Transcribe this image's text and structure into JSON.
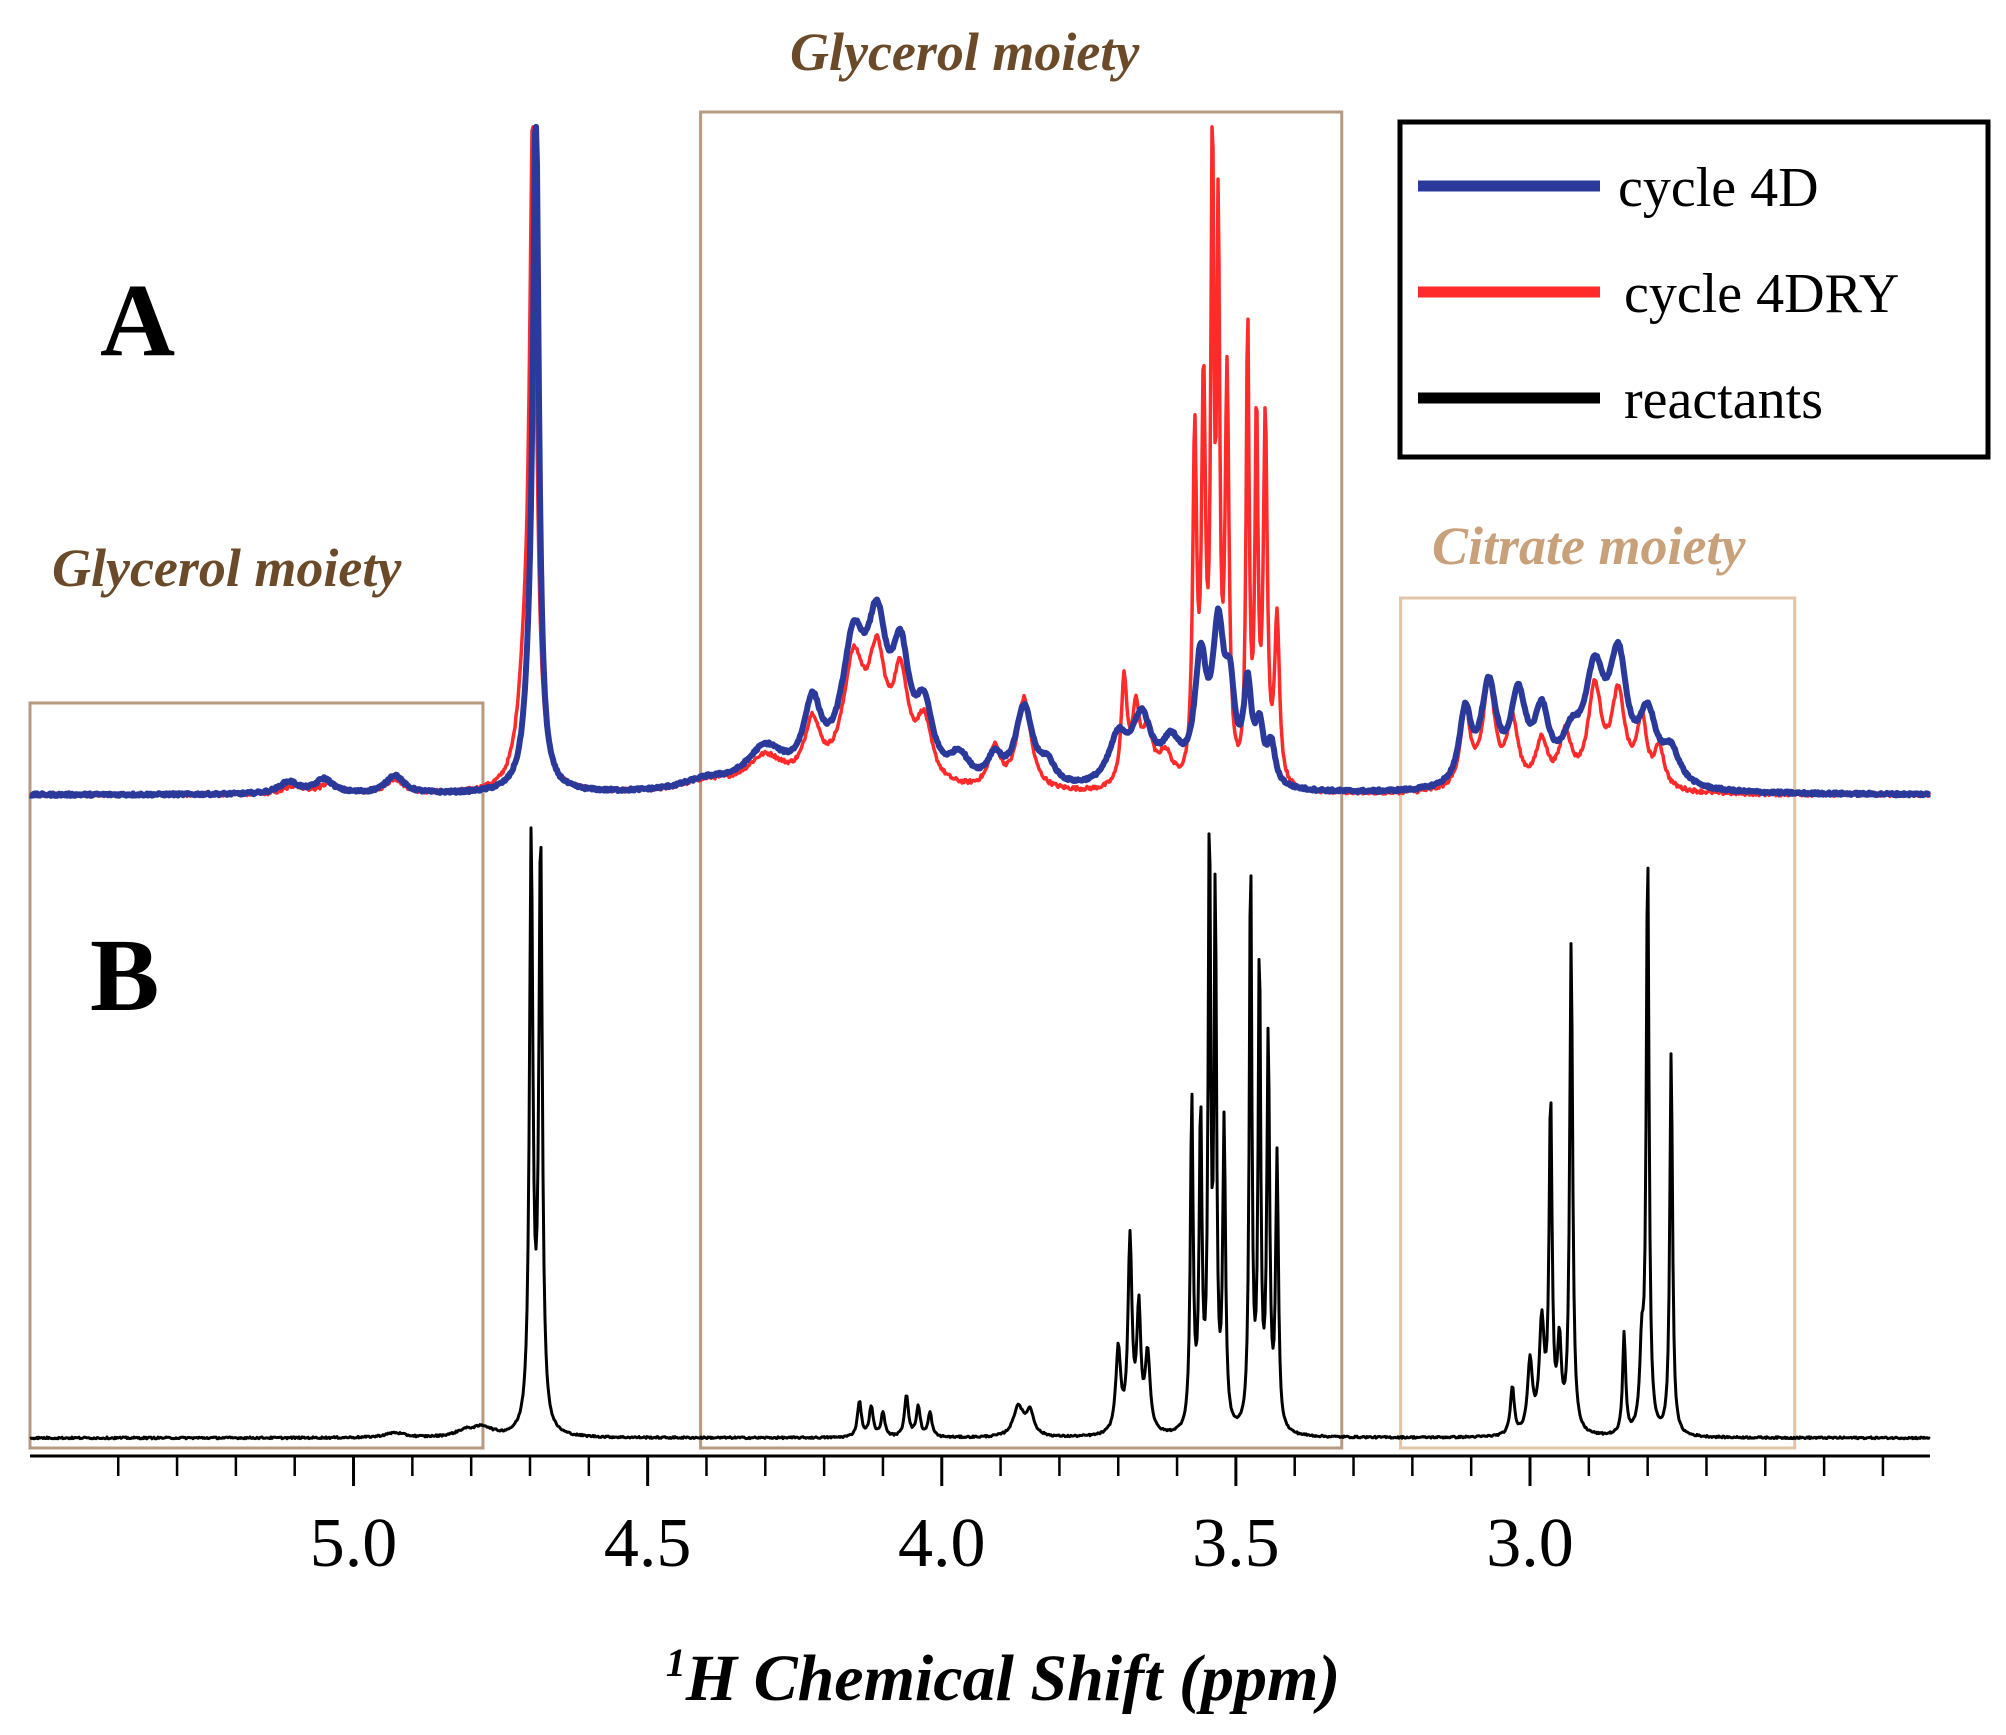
{
  "chart_data": {
    "type": "line",
    "title": "",
    "xlabel": {
      "superscript": "1",
      "text": "H Chemical Shift (ppm)"
    },
    "ylabel": "",
    "x_reversed": true,
    "xlim": [
      5.55,
      2.32
    ],
    "ylim": [
      0,
      1
    ],
    "grid": false,
    "x_ticks_major": [
      5.0,
      4.5,
      4.0,
      3.5,
      3.0
    ],
    "x_tick_labels": [
      "5.0",
      "4.5",
      "4.0",
      "3.5",
      "3.0"
    ],
    "x_ticks_minor": [
      5.4,
      5.3,
      5.2,
      5.1,
      4.9,
      4.8,
      4.7,
      4.6,
      4.4,
      4.3,
      4.2,
      4.1,
      3.9,
      3.8,
      3.7,
      3.6,
      3.4,
      3.3,
      3.2,
      3.1,
      2.9,
      2.8,
      2.7,
      2.6,
      2.5,
      2.4
    ],
    "panels": [
      {
        "label": "A",
        "series": [
          "cycle 4D",
          "cycle 4DRY"
        ]
      },
      {
        "label": "B",
        "series": [
          "reactants"
        ]
      }
    ],
    "legend": {
      "position": "top-right",
      "entries": [
        {
          "name": "cycle 4D",
          "color": "#2b3a9a"
        },
        {
          "name": "cycle 4DRY",
          "color": "#ff2a2a"
        },
        {
          "name": "reactants",
          "color": "#000000"
        }
      ]
    },
    "regions": [
      {
        "label": "Glycerol moiety",
        "from_ppm": 5.55,
        "to_ppm": 4.78,
        "label_color": "#6b4a2a",
        "box_color": "#b89a80"
      },
      {
        "label": "Glycerol moiety",
        "from_ppm": 4.41,
        "to_ppm": 3.32,
        "label_color": "#6b4a2a",
        "box_color": "#b89a80"
      },
      {
        "label": "Citrate moiety",
        "from_ppm": 3.22,
        "to_ppm": 2.55,
        "label_color": "#c8a07a",
        "box_color": "#e2c4a8"
      }
    ],
    "series": [
      {
        "name": "cycle 4D",
        "color": "#2b3a9a",
        "panel": "A",
        "baseline_noise": 0.004,
        "peaks": [
          [
            5.11,
            0.018,
            0.02
          ],
          [
            5.05,
            0.022,
            0.018
          ],
          [
            4.93,
            0.028,
            0.018
          ],
          [
            4.69,
            1.0,
            0.006
          ],
          [
            4.7,
            0.1,
            0.012
          ],
          [
            4.4,
            0.015,
            0.05
          ],
          [
            4.3,
            0.06,
            0.04
          ],
          [
            4.22,
            0.11,
            0.018
          ],
          [
            4.15,
            0.2,
            0.025
          ],
          [
            4.11,
            0.2,
            0.02
          ],
          [
            4.07,
            0.17,
            0.018
          ],
          [
            4.03,
            0.1,
            0.018
          ],
          [
            3.97,
            0.04,
            0.02
          ],
          [
            3.91,
            0.04,
            0.015
          ],
          [
            3.86,
            0.12,
            0.018
          ],
          [
            3.82,
            0.03,
            0.015
          ],
          [
            3.7,
            0.07,
            0.02
          ],
          [
            3.66,
            0.1,
            0.02
          ],
          [
            3.61,
            0.06,
            0.02
          ],
          [
            3.56,
            0.18,
            0.012
          ],
          [
            3.53,
            0.22,
            0.012
          ],
          [
            3.51,
            0.12,
            0.01
          ],
          [
            3.48,
            0.14,
            0.008
          ],
          [
            3.46,
            0.08,
            0.008
          ],
          [
            3.44,
            0.06,
            0.008
          ],
          [
            3.11,
            0.11,
            0.012
          ],
          [
            3.07,
            0.15,
            0.016
          ],
          [
            3.02,
            0.13,
            0.016
          ],
          [
            2.98,
            0.1,
            0.015
          ],
          [
            2.93,
            0.06,
            0.02
          ],
          [
            2.89,
            0.16,
            0.02
          ],
          [
            2.85,
            0.18,
            0.018
          ],
          [
            2.8,
            0.1,
            0.018
          ],
          [
            2.76,
            0.05,
            0.018
          ]
        ]
      },
      {
        "name": "cycle 4DRY",
        "color": "#ff2a2a",
        "panel": "A",
        "baseline_noise": 0.006,
        "peaks": [
          [
            5.1,
            0.012,
            0.02
          ],
          [
            5.04,
            0.016,
            0.018
          ],
          [
            4.93,
            0.022,
            0.018
          ],
          [
            4.695,
            1.0,
            0.007
          ],
          [
            4.71,
            0.12,
            0.014
          ],
          [
            4.4,
            0.015,
            0.05
          ],
          [
            4.3,
            0.05,
            0.04
          ],
          [
            4.22,
            0.09,
            0.016
          ],
          [
            4.15,
            0.18,
            0.022
          ],
          [
            4.11,
            0.17,
            0.018
          ],
          [
            4.07,
            0.15,
            0.016
          ],
          [
            4.03,
            0.09,
            0.016
          ],
          [
            3.91,
            0.06,
            0.012
          ],
          [
            3.86,
            0.14,
            0.014
          ],
          [
            3.69,
            0.16,
            0.006
          ],
          [
            3.67,
            0.11,
            0.008
          ],
          [
            3.65,
            0.08,
            0.01
          ],
          [
            3.62,
            0.05,
            0.015
          ],
          [
            3.57,
            0.52,
            0.004
          ],
          [
            3.555,
            0.58,
            0.004
          ],
          [
            3.54,
            0.95,
            0.003
          ],
          [
            3.53,
            0.8,
            0.003
          ],
          [
            3.515,
            0.6,
            0.004
          ],
          [
            3.48,
            0.7,
            0.003
          ],
          [
            3.465,
            0.55,
            0.003
          ],
          [
            3.45,
            0.55,
            0.004
          ],
          [
            3.43,
            0.25,
            0.005
          ],
          [
            3.11,
            0.12,
            0.01
          ],
          [
            3.07,
            0.16,
            0.012
          ],
          [
            3.03,
            0.1,
            0.012
          ],
          [
            2.98,
            0.07,
            0.012
          ],
          [
            2.94,
            0.08,
            0.012
          ],
          [
            2.89,
            0.15,
            0.014
          ],
          [
            2.85,
            0.14,
            0.014
          ],
          [
            2.81,
            0.1,
            0.01
          ],
          [
            2.78,
            0.06,
            0.01
          ]
        ]
      },
      {
        "name": "reactants",
        "color": "#000000",
        "panel": "B",
        "baseline_noise": 0.003,
        "peaks": [
          [
            4.93,
            0.008,
            0.02
          ],
          [
            4.81,
            0.01,
            0.02
          ],
          [
            4.78,
            0.015,
            0.02
          ],
          [
            4.698,
            0.98,
            0.0035
          ],
          [
            4.682,
            0.98,
            0.0035
          ],
          [
            4.14,
            0.06,
            0.004
          ],
          [
            4.12,
            0.05,
            0.004
          ],
          [
            4.1,
            0.04,
            0.004
          ],
          [
            4.06,
            0.07,
            0.004
          ],
          [
            4.04,
            0.05,
            0.004
          ],
          [
            4.02,
            0.04,
            0.004
          ],
          [
            3.87,
            0.05,
            0.01
          ],
          [
            3.85,
            0.04,
            0.008
          ],
          [
            3.7,
            0.14,
            0.005
          ],
          [
            3.68,
            0.32,
            0.004
          ],
          [
            3.665,
            0.2,
            0.004
          ],
          [
            3.65,
            0.13,
            0.005
          ],
          [
            3.575,
            0.55,
            0.0028
          ],
          [
            3.56,
            0.52,
            0.0028
          ],
          [
            3.545,
            1.0,
            0.0025
          ],
          [
            3.535,
            0.88,
            0.0025
          ],
          [
            3.52,
            0.5,
            0.0028
          ],
          [
            3.475,
            0.97,
            0.0025
          ],
          [
            3.46,
            0.8,
            0.0025
          ],
          [
            3.445,
            0.65,
            0.0028
          ],
          [
            3.43,
            0.45,
            0.0028
          ],
          [
            3.03,
            0.08,
            0.004
          ],
          [
            3.0,
            0.12,
            0.005
          ],
          [
            2.98,
            0.18,
            0.005
          ],
          [
            2.965,
            0.55,
            0.003
          ],
          [
            2.95,
            0.14,
            0.004
          ],
          [
            2.93,
            0.82,
            0.003
          ],
          [
            2.84,
            0.17,
            0.003
          ],
          [
            2.81,
            0.13,
            0.004
          ],
          [
            2.8,
            0.97,
            0.0028
          ],
          [
            2.76,
            0.64,
            0.0028
          ]
        ]
      }
    ]
  }
}
